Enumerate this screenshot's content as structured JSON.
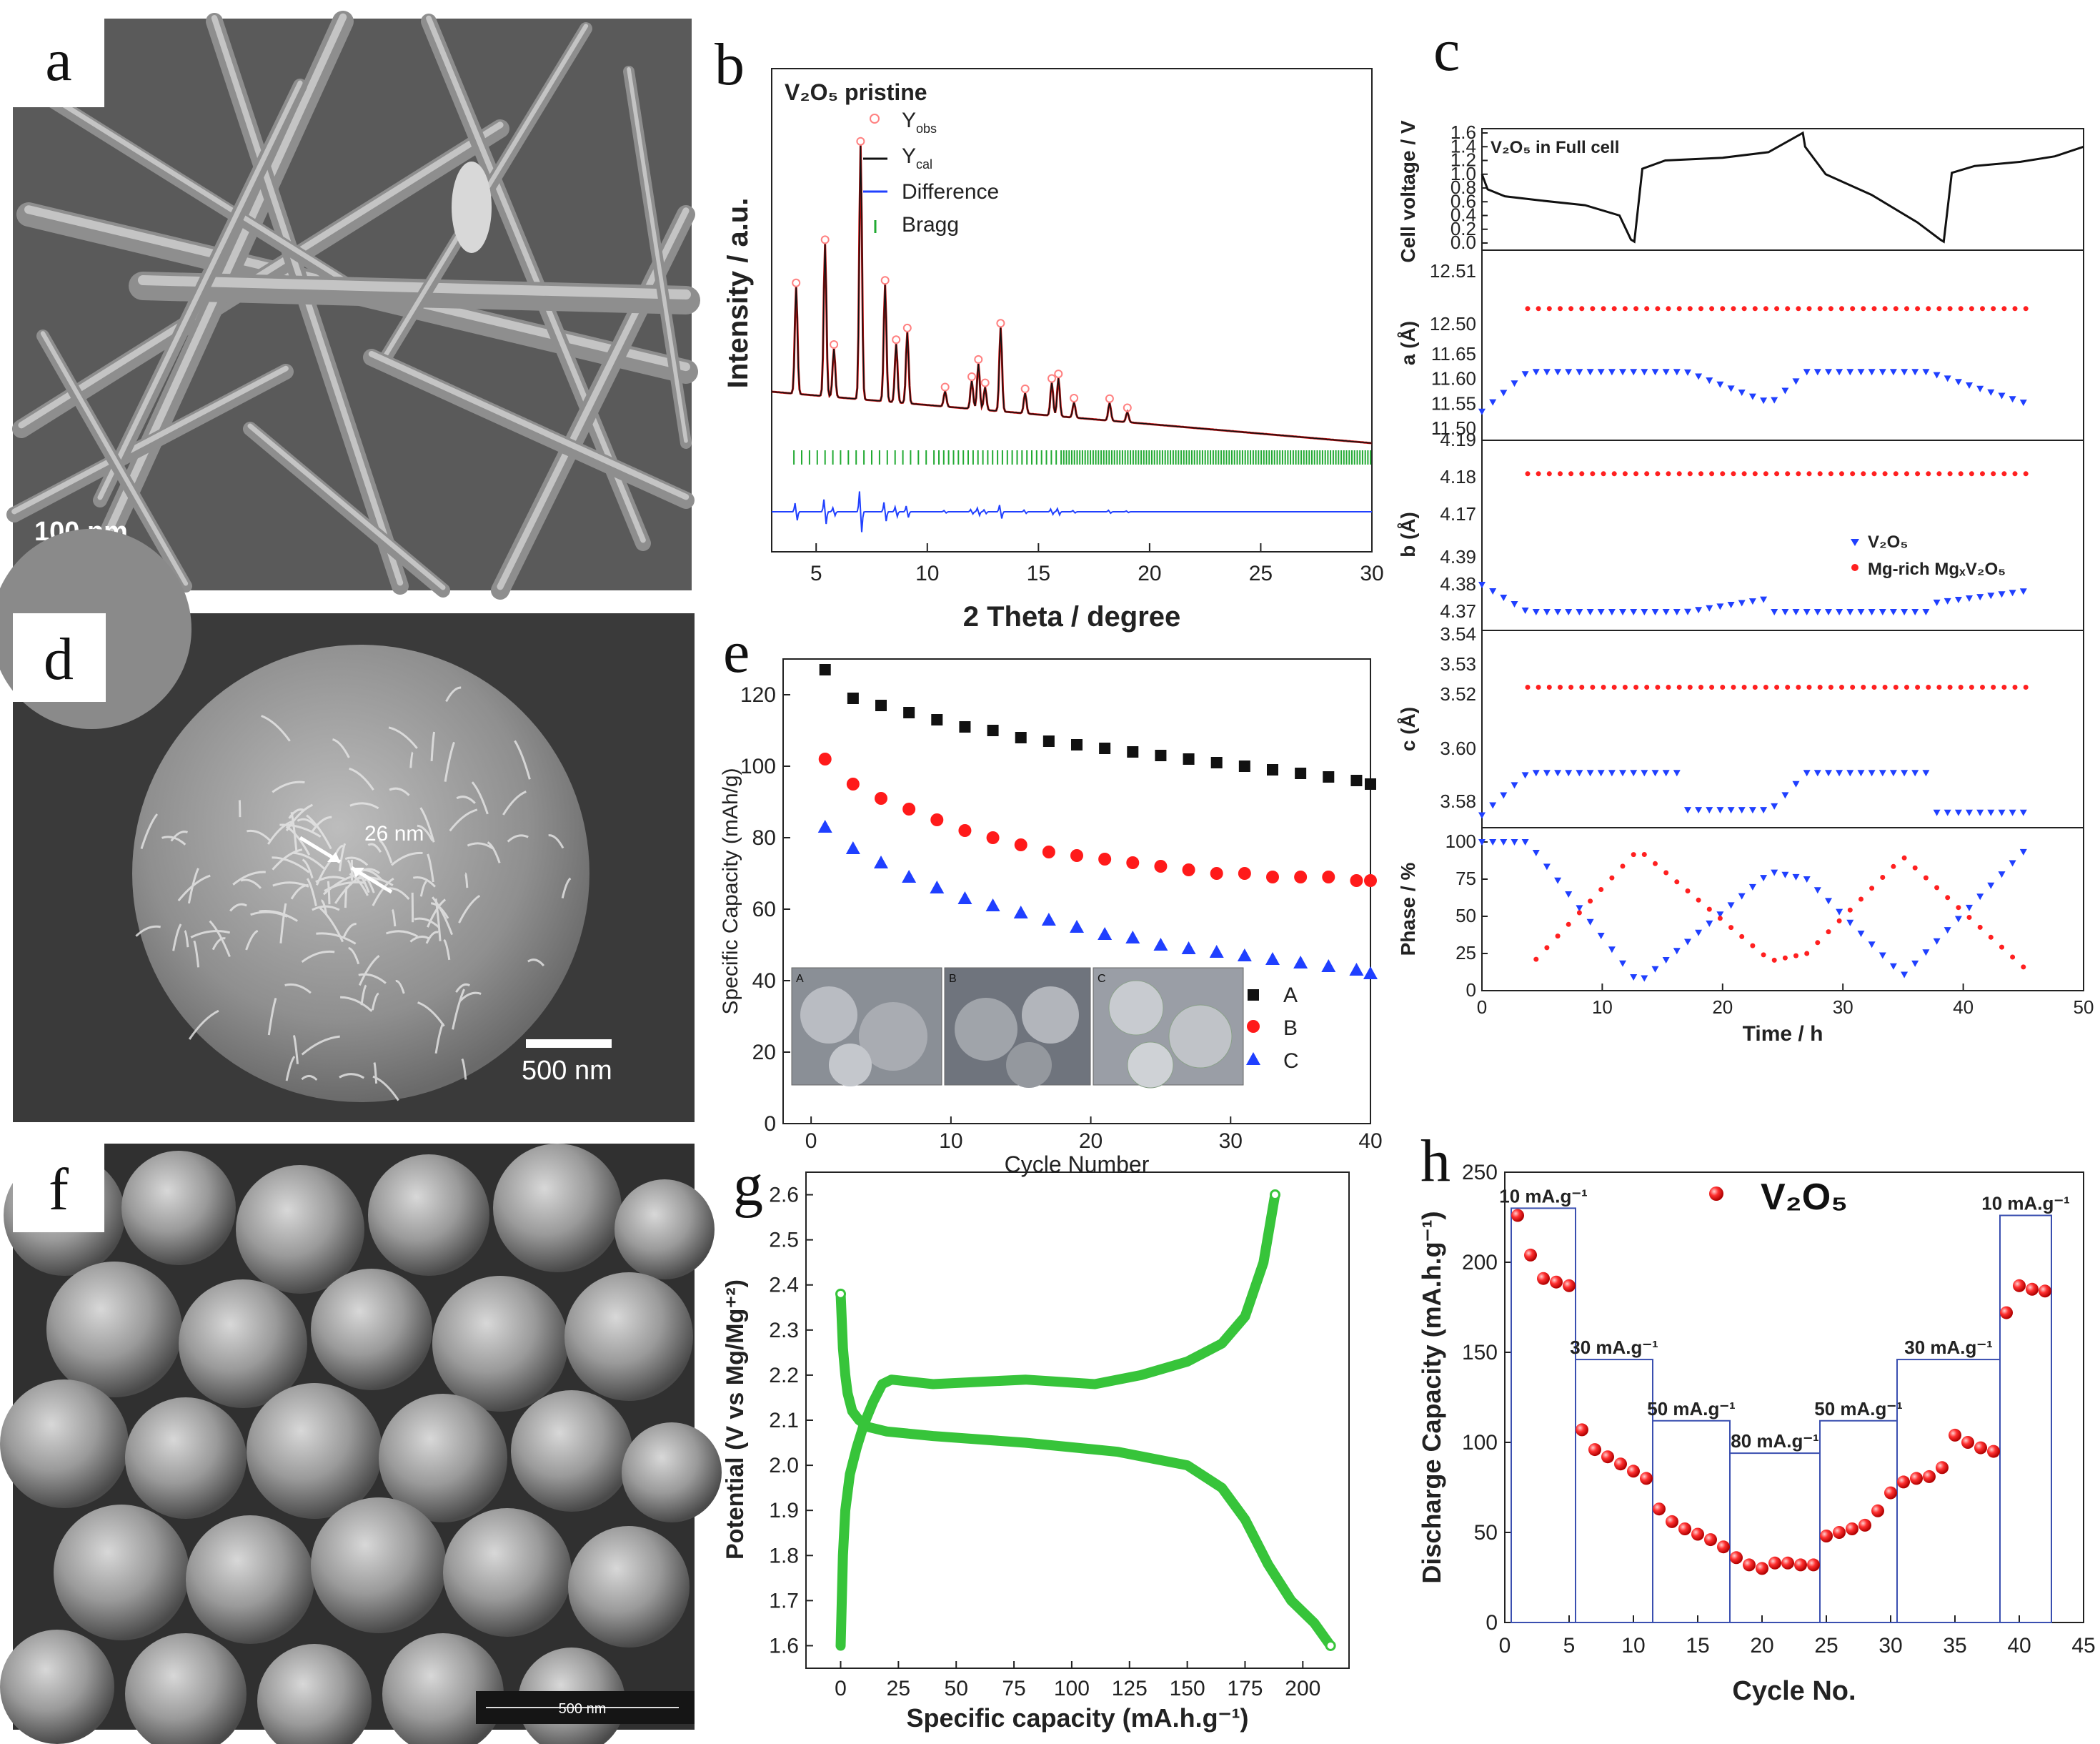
{
  "panels": {
    "a": {
      "label": "a",
      "scale_bar": "100 nm"
    },
    "b": {
      "label": "b",
      "title": "V₂O₅ pristine",
      "xlabel": "2 Theta / degree",
      "ylabel": "Intensity / a.u.",
      "legend": [
        "Y",
        "Y",
        "Difference",
        "Bragg"
      ],
      "legend_sub": [
        "obs",
        "cal"
      ],
      "chart_data": {
        "type": "line",
        "xlim": [
          3,
          30
        ],
        "xticks": [
          5,
          10,
          15,
          20,
          25,
          30
        ],
        "peaks": [
          {
            "x": 4.1,
            "h": 0.42
          },
          {
            "x": 5.4,
            "h": 0.6
          },
          {
            "x": 5.8,
            "h": 0.19
          },
          {
            "x": 7.0,
            "h": 1.0
          },
          {
            "x": 8.1,
            "h": 0.46
          },
          {
            "x": 8.6,
            "h": 0.23
          },
          {
            "x": 9.1,
            "h": 0.28
          },
          {
            "x": 10.8,
            "h": 0.06
          },
          {
            "x": 12.0,
            "h": 0.11
          },
          {
            "x": 12.3,
            "h": 0.18
          },
          {
            "x": 12.6,
            "h": 0.09
          },
          {
            "x": 13.3,
            "h": 0.33
          },
          {
            "x": 14.4,
            "h": 0.08
          },
          {
            "x": 15.6,
            "h": 0.13
          },
          {
            "x": 15.9,
            "h": 0.15
          },
          {
            "x": 16.6,
            "h": 0.06
          },
          {
            "x": 18.2,
            "h": 0.07
          },
          {
            "x": 19.0,
            "h": 0.04
          }
        ]
      }
    },
    "c": {
      "label": "c",
      "top": {
        "text": "V₂O₅ in Full cell",
        "ylabel": "Cell voltage / V",
        "yticks": [
          "0.0",
          "0.2",
          "0.4",
          "0.6",
          "0.8",
          "1.0",
          "1.2",
          "1.4",
          "1.6"
        ]
      },
      "a_axis": {
        "ylabel": "a (Å)",
        "yticks_upper": [
          "12.50",
          "12.51"
        ],
        "yticks_lower": [
          "11.50",
          "11.55",
          "11.60",
          "11.65"
        ]
      },
      "b_axis": {
        "ylabel": "b (Å)",
        "yticks_upper": [
          "4.17",
          "4.18",
          "4.19"
        ],
        "yticks_lower": [
          "4.37",
          "4.38",
          "4.39"
        ]
      },
      "c_axis": {
        "ylabel": "c (Å)",
        "yticks_upper": [
          "3.52",
          "3.53",
          "3.54"
        ],
        "yticks_lower": [
          "3.58",
          "3.60"
        ]
      },
      "phase": {
        "ylabel": "Phase / %",
        "yticks": [
          "0",
          "25",
          "50",
          "75",
          "100"
        ]
      },
      "xlabel": "Time / h",
      "xticks": [
        "0",
        "10",
        "20",
        "30",
        "40",
        "50"
      ],
      "legend": [
        "V₂O₅",
        "Mg-rich MgₓV₂O₅"
      ],
      "colors": {
        "v2o5": "#1f3fff",
        "mg": "#ff2020"
      }
    },
    "d": {
      "label": "d",
      "measure": "26 nm",
      "scale_bar": "500 nm"
    },
    "e": {
      "label": "e",
      "xlabel": "Cycle Number",
      "ylabel": "Specific Capacity (mAh/g)",
      "legend": [
        "A",
        "B",
        "C"
      ],
      "inset_labels": [
        "A",
        "B",
        "C"
      ],
      "chart_data": {
        "type": "scatter",
        "xlim": [
          0,
          40
        ],
        "ylim": [
          0,
          130
        ],
        "xticks": [
          0,
          10,
          20,
          30,
          40
        ],
        "yticks": [
          0,
          20,
          40,
          60,
          80,
          100,
          120
        ],
        "x": [
          1,
          3,
          5,
          7,
          9,
          11,
          13,
          15,
          17,
          19,
          21,
          23,
          25,
          27,
          29,
          31,
          33,
          35,
          37,
          39,
          40
        ],
        "series": [
          {
            "name": "A",
            "values": [
              127,
              119,
              117,
              115,
              113,
              111,
              110,
              108,
              107,
              106,
              105,
              104,
              103,
              102,
              101,
              100,
              99,
              98,
              97,
              96,
              95
            ]
          },
          {
            "name": "B",
            "values": [
              102,
              95,
              91,
              88,
              85,
              82,
              80,
              78,
              76,
              75,
              74,
              73,
              72,
              71,
              70,
              70,
              69,
              69,
              69,
              68,
              68
            ]
          },
          {
            "name": "C",
            "values": [
              83,
              77,
              73,
              69,
              66,
              63,
              61,
              59,
              57,
              55,
              53,
              52,
              50,
              49,
              48,
              47,
              46,
              45,
              44,
              43,
              42
            ]
          }
        ]
      }
    },
    "f": {
      "label": "f",
      "scale_bar": "500 nm"
    },
    "g": {
      "label": "g",
      "xlabel": "Specific capacity (mA.h.g⁻¹)",
      "ylabel": "Potential (V vs Mg/Mg⁺²)",
      "chart_data": {
        "type": "line",
        "xlim": [
          -15,
          220
        ],
        "ylim": [
          1.55,
          2.65
        ],
        "xticks": [
          0,
          25,
          50,
          75,
          100,
          125,
          150,
          175,
          200
        ],
        "yticks": [
          1.6,
          1.7,
          1.8,
          1.9,
          2.0,
          2.1,
          2.2,
          2.3,
          2.4,
          2.5,
          2.6
        ],
        "color": "#37c43a",
        "series": [
          {
            "name": "discharge",
            "x": [
              0,
              0.5,
              1,
              2,
              3,
              5,
              8,
              12,
              20,
              40,
              80,
              120,
              150,
              165,
              175,
              185,
              195,
              205,
              212
            ],
            "y": [
              2.38,
              2.32,
              2.26,
              2.2,
              2.16,
              2.12,
              2.1,
              2.085,
              2.075,
              2.065,
              2.05,
              2.03,
              2.0,
              1.95,
              1.88,
              1.78,
              1.7,
              1.65,
              1.6
            ]
          },
          {
            "name": "charge",
            "x": [
              0,
              0.5,
              1,
              2,
              4,
              7,
              10,
              14,
              18,
              22,
              40,
              80,
              110,
              130,
              150,
              165,
              175,
              183,
              188
            ],
            "y": [
              1.6,
              1.7,
              1.8,
              1.9,
              1.98,
              2.04,
              2.09,
              2.14,
              2.18,
              2.19,
              2.18,
              2.19,
              2.18,
              2.2,
              2.23,
              2.27,
              2.33,
              2.45,
              2.6
            ]
          }
        ]
      }
    },
    "h": {
      "label": "h",
      "legend": "V₂O₅",
      "xlabel": "Cycle No.",
      "ylabel": "Discharge Capacity (mA.h.g⁻¹)",
      "rates": [
        "10 mA.g⁻¹",
        "30 mA.g⁻¹",
        "50 mA.g⁻¹",
        "80 mA.g⁻¹",
        "50 mA.g⁻¹",
        "30 mA.g⁻¹",
        "10 mA.g⁻¹"
      ],
      "chart_data": {
        "type": "scatter",
        "xlim": [
          0,
          45
        ],
        "ylim": [
          0,
          250
        ],
        "xticks": [
          0,
          5,
          10,
          15,
          20,
          25,
          30,
          35,
          40,
          45
        ],
        "yticks": [
          0,
          50,
          100,
          150,
          200,
          250
        ],
        "x": [
          1,
          2,
          3,
          4,
          5,
          6,
          7,
          8,
          9,
          10,
          11,
          12,
          13,
          14,
          15,
          16,
          17,
          18,
          19,
          20,
          21,
          22,
          23,
          24,
          25,
          26,
          27,
          28,
          29,
          30,
          31,
          32,
          33,
          34,
          35,
          36,
          37,
          38,
          39,
          40,
          41,
          42
        ],
        "values": [
          226,
          204,
          191,
          189,
          187,
          107,
          96,
          92,
          88,
          84,
          80,
          63,
          56,
          52,
          49,
          46,
          42,
          36,
          32,
          30,
          33,
          33,
          32,
          32,
          48,
          50,
          52,
          54,
          62,
          72,
          78,
          80,
          81,
          86,
          104,
          100,
          97,
          95,
          172,
          187,
          185,
          184
        ],
        "rate_boxes": [
          {
            "x0": 0.5,
            "x1": 5.5,
            "y": 230
          },
          {
            "x0": 5.5,
            "x1": 11.5,
            "y": 146
          },
          {
            "x0": 11.5,
            "x1": 17.5,
            "y": 112
          },
          {
            "x0": 17.5,
            "x1": 24.5,
            "y": 94
          },
          {
            "x0": 24.5,
            "x1": 30.5,
            "y": 112
          },
          {
            "x0": 30.5,
            "x1": 38.5,
            "y": 146
          },
          {
            "x0": 38.5,
            "x1": 42.5,
            "y": 226
          }
        ]
      }
    }
  }
}
